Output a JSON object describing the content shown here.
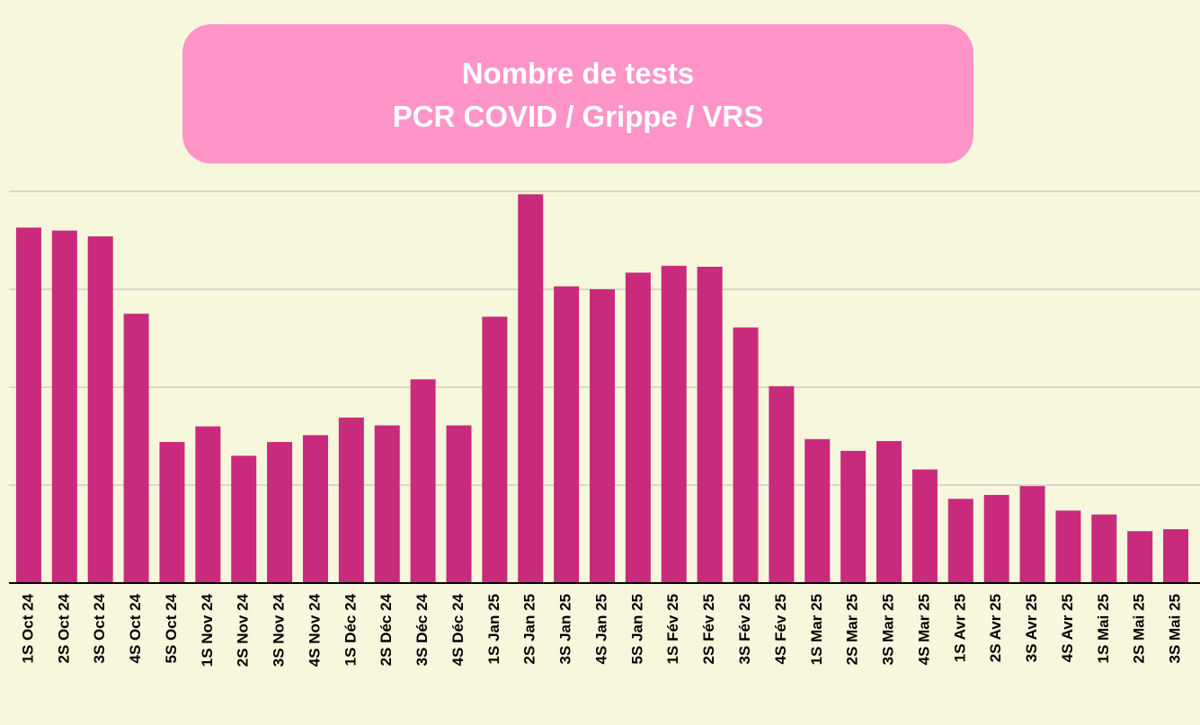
{
  "chart_data": {
    "type": "bar",
    "title": [
      "Nombre de tests",
      "PCR COVID / Grippe / VRS"
    ],
    "categories": [
      "1S Oct 24",
      "2S Oct 24",
      "3S Oct 24",
      "4S Oct 24",
      "5S Oct 24",
      "1S Nov 24",
      "2S Nov 24",
      "3S Nov 24",
      "4S Nov 24",
      "1S Déc 24",
      "2S Déc 24",
      "3S Déc 24",
      "4S Déc 24",
      "1S Jan 25",
      "2S Jan 25",
      "3S Jan 25",
      "4S Jan 25",
      "5S Jan 25",
      "1S Fév 25",
      "2S Fév 25",
      "3S Fév 25",
      "4S Fév 25",
      "1S Mar 25",
      "2S Mar 25",
      "3S Mar 25",
      "4S Mar 25",
      "1S Avr 25",
      "2S Avr 25",
      "3S Avr 25",
      "4S Avr 25",
      "1S Mai 25",
      "2S Mai 25",
      "3S Mai 25"
    ],
    "values": [
      3.63,
      3.6,
      3.54,
      2.75,
      1.44,
      1.6,
      1.3,
      1.44,
      1.51,
      1.69,
      1.61,
      2.08,
      1.61,
      2.72,
      3.97,
      3.03,
      3.0,
      3.17,
      3.24,
      3.23,
      2.61,
      2.01,
      1.47,
      1.35,
      1.45,
      1.16,
      0.86,
      0.9,
      0.99,
      0.74,
      0.7,
      0.53,
      0.55
    ],
    "color": "#c92a7c",
    "ylim": [
      0,
      4
    ],
    "yticks": [
      0,
      1,
      2,
      3,
      4
    ],
    "grid": true
  }
}
